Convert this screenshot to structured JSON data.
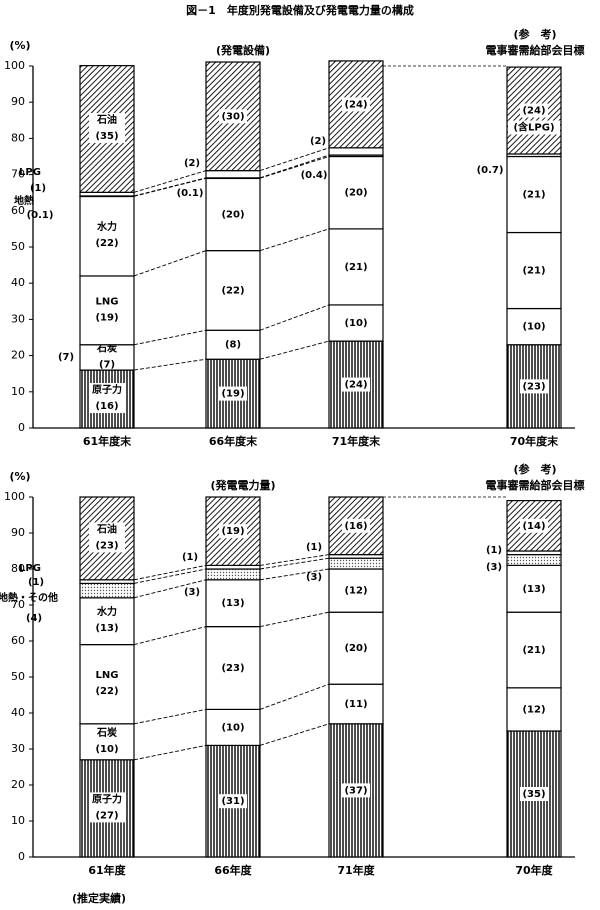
{
  "page_title": "図－1　年度別発電設備及び発電電力量の構成",
  "footnote": "(推定実績)",
  "colors": {
    "ink": "#000000",
    "paper": "#ffffff",
    "lpg_dots": "#555555"
  },
  "chart_data": [
    {
      "type": "bar",
      "stacked": true,
      "title": "(発電設備)",
      "y_unit_label": "(%)",
      "ylim": [
        0,
        100
      ],
      "yticks": [
        0,
        10,
        20,
        30,
        40,
        50,
        60,
        70,
        80,
        90,
        100
      ],
      "grid": false,
      "categories": [
        "61年度末",
        "66年度末",
        "71年度末",
        "70年度末"
      ],
      "reference_header": [
        "(参　考)",
        "電事審需給部会目標"
      ],
      "series": [
        {
          "name": "原子力",
          "pattern": "vertical-lines",
          "values": [
            16,
            19,
            24,
            23
          ],
          "labels": [
            "(16)",
            "(19)",
            "(24)",
            "(23)"
          ]
        },
        {
          "name": "石炭",
          "pattern": "white",
          "values": [
            7,
            8,
            10,
            10
          ],
          "labels": [
            "(7)",
            "(8)",
            "(10)",
            "(10)"
          ]
        },
        {
          "name": "LNG",
          "pattern": "white",
          "values": [
            19,
            22,
            21,
            21
          ],
          "labels": [
            "(19)",
            "(22)",
            "(21)",
            "(21)"
          ]
        },
        {
          "name": "水力",
          "pattern": "white",
          "values": [
            22,
            20,
            20,
            21
          ],
          "labels": [
            "(22)",
            "(20)",
            "(20)",
            "(21)"
          ]
        },
        {
          "name": "地熱",
          "pattern": "white",
          "values": [
            0.1,
            0.1,
            0.4,
            0.7
          ],
          "labels": [
            "(0.1)",
            "(0.1)",
            "(0.4)",
            "(0.7)"
          ]
        },
        {
          "name": "LPG",
          "pattern": "white",
          "values": [
            1,
            2,
            2,
            0
          ],
          "labels": [
            "(1)",
            "(2)",
            "(2)",
            ""
          ]
        },
        {
          "name": "石油",
          "pattern": "diagonal-hatch",
          "values": [
            35,
            30,
            24,
            24
          ],
          "labels": [
            "(35)",
            "(30)",
            "(24)",
            "(24)"
          ],
          "note_last": "(含LPG)"
        }
      ]
    },
    {
      "type": "bar",
      "stacked": true,
      "title": "(発電電力量)",
      "y_unit_label": "(%)",
      "ylim": [
        0,
        100
      ],
      "yticks": [
        0,
        10,
        20,
        30,
        40,
        50,
        60,
        70,
        80,
        90,
        100
      ],
      "grid": false,
      "categories": [
        "61年度",
        "66年度",
        "71年度",
        "70年度"
      ],
      "reference_header": [
        "(参　考)",
        "電事審需給部会目標"
      ],
      "series": [
        {
          "name": "原子力",
          "pattern": "vertical-lines",
          "values": [
            27,
            31,
            37,
            35
          ],
          "labels": [
            "(27)",
            "(31)",
            "(37)",
            "(35)"
          ]
        },
        {
          "name": "石炭",
          "pattern": "white",
          "values": [
            10,
            10,
            11,
            12
          ],
          "labels": [
            "(10)",
            "(10)",
            "(11)",
            "(12)"
          ]
        },
        {
          "name": "LNG",
          "pattern": "white",
          "values": [
            22,
            23,
            20,
            21
          ],
          "labels": [
            "(22)",
            "(23)",
            "(20)",
            "(21)"
          ]
        },
        {
          "name": "水力",
          "pattern": "white",
          "values": [
            13,
            13,
            12,
            13
          ],
          "labels": [
            "(13)",
            "(13)",
            "(12)",
            "(13)"
          ]
        },
        {
          "name": "地熱・その他",
          "pattern": "dots",
          "values": [
            4,
            3,
            3,
            3
          ],
          "labels": [
            "(4)",
            "(3)",
            "(3)",
            "(3)"
          ]
        },
        {
          "name": "LPG",
          "pattern": "white",
          "values": [
            1,
            1,
            1,
            1
          ],
          "labels": [
            "(1)",
            "(1)",
            "(1)",
            "(1)"
          ]
        },
        {
          "name": "石油",
          "pattern": "diagonal-hatch",
          "values": [
            23,
            19,
            16,
            14
          ],
          "labels": [
            "(23)",
            "(19)",
            "(16)",
            "(14)"
          ]
        }
      ]
    }
  ]
}
